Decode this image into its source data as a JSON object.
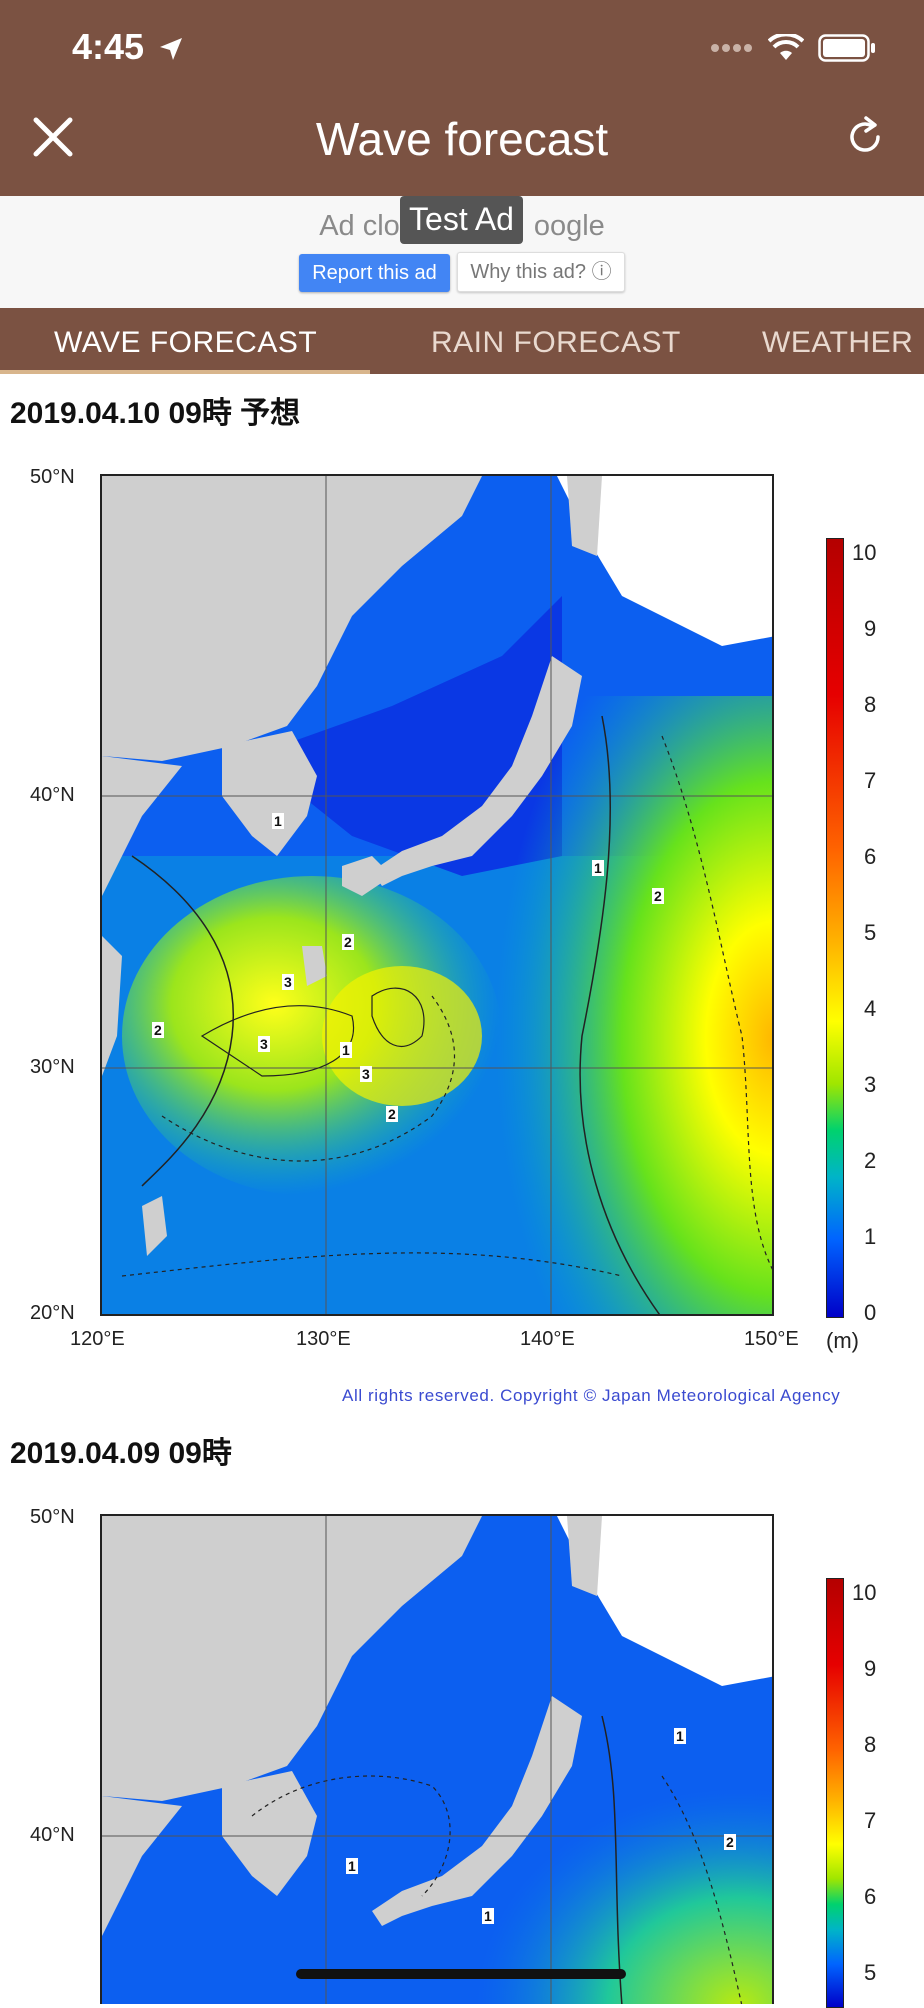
{
  "status_bar": {
    "time": "4:45"
  },
  "header": {
    "title": "Wave forecast",
    "close_icon": "close-icon",
    "refresh_icon": "refresh-icon"
  },
  "ad": {
    "left_text": "Ad clo",
    "right_text": "oogle",
    "badge": "Test Ad",
    "report_label": "Report this ad",
    "why_label": "Why this ad? ⓘ"
  },
  "tabs": [
    {
      "label": "WAVE FORECAST",
      "active": true
    },
    {
      "label": "RAIN FORECAST",
      "active": false
    },
    {
      "label": "WEATHER I",
      "active": false
    }
  ],
  "forecasts": [
    {
      "title": "2019.04.10 09時 予想",
      "lat_labels": [
        "50°N",
        "40°N",
        "30°N",
        "20°N"
      ],
      "lon_labels": [
        "120°E",
        "130°E",
        "140°E",
        "150°E"
      ],
      "unit": "(m)",
      "colorbar_ticks": [
        "10",
        "9",
        "8",
        "7",
        "6",
        "5",
        "4",
        "3",
        "2",
        "1",
        "0"
      ],
      "contour_labels": [
        "1",
        "2",
        "3",
        "2",
        "3",
        "1",
        "3",
        "2",
        "1",
        "2"
      ]
    },
    {
      "title": "2019.04.09 09時",
      "lat_labels": [
        "50°N",
        "40°N"
      ],
      "colorbar_ticks": [
        "10",
        "9",
        "8",
        "7",
        "6",
        "5"
      ],
      "contour_labels": [
        "1",
        "1",
        "1",
        "2"
      ]
    }
  ],
  "copyright": "All rights reserved. Copyright © Japan Meteorological Agency",
  "colors": {
    "header": "#7b5242",
    "tab_indicator": "#d8b58c",
    "report_button": "#4285f4"
  }
}
